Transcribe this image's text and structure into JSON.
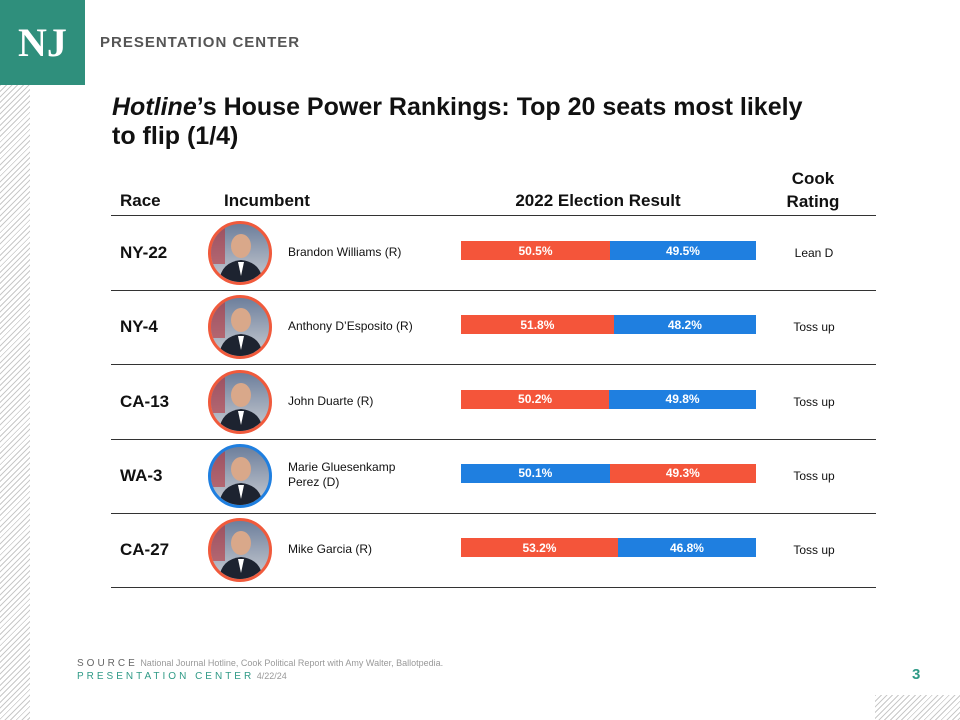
{
  "header": {
    "logo": "NJ",
    "brand": "PRESENTATION CENTER"
  },
  "title": {
    "italic": "Hotline",
    "rest": "’s House Power Rankings: Top 20 seats most likely to flip (1/4)"
  },
  "table": {
    "columns": [
      "Race",
      "Incumbent",
      "2022 Election Result",
      "Cook Rating"
    ],
    "rows": [
      {
        "race": "NY-22",
        "incumbent": "Brandon Williams (R)",
        "party_color": "#f05a3c",
        "result": [
          {
            "value": 50.5,
            "label": "50.5%",
            "color": "#f4553a"
          },
          {
            "value": 49.5,
            "label": "49.5%",
            "color": "#1f7fe0"
          }
        ],
        "rating": "Lean D"
      },
      {
        "race": "NY-4",
        "incumbent": "Anthony D’Esposito (R)",
        "party_color": "#f05a3c",
        "result": [
          {
            "value": 51.8,
            "label": "51.8%",
            "color": "#f4553a"
          },
          {
            "value": 48.2,
            "label": "48.2%",
            "color": "#1f7fe0"
          }
        ],
        "rating": "Toss up"
      },
      {
        "race": "CA-13",
        "incumbent": "John Duarte (R)",
        "party_color": "#f05a3c",
        "result": [
          {
            "value": 50.2,
            "label": "50.2%",
            "color": "#f4553a"
          },
          {
            "value": 49.8,
            "label": "49.8%",
            "color": "#1f7fe0"
          }
        ],
        "rating": "Toss up"
      },
      {
        "race": "WA-3",
        "incumbent": "Marie Gluesenkamp Perez (D)",
        "party_color": "#1f7fe0",
        "result": [
          {
            "value": 50.1,
            "label": "50.1%",
            "color": "#1f7fe0"
          },
          {
            "value": 49.3,
            "label": "49.3%",
            "color": "#f4553a"
          }
        ],
        "rating": "Toss up"
      },
      {
        "race": "CA-27",
        "incumbent": "Mike Garcia (R)",
        "party_color": "#f05a3c",
        "result": [
          {
            "value": 53.2,
            "label": "53.2%",
            "color": "#f4553a"
          },
          {
            "value": 46.8,
            "label": "46.8%",
            "color": "#1f7fe0"
          }
        ],
        "rating": "Toss up"
      }
    ]
  },
  "footer": {
    "source_label": "SOURCE",
    "source": "National Journal Hotline, Cook Political Report with Amy Walter, Ballotpedia.",
    "brand": "PRESENTATION CENTER",
    "date": "4/22/24",
    "page": "3"
  }
}
